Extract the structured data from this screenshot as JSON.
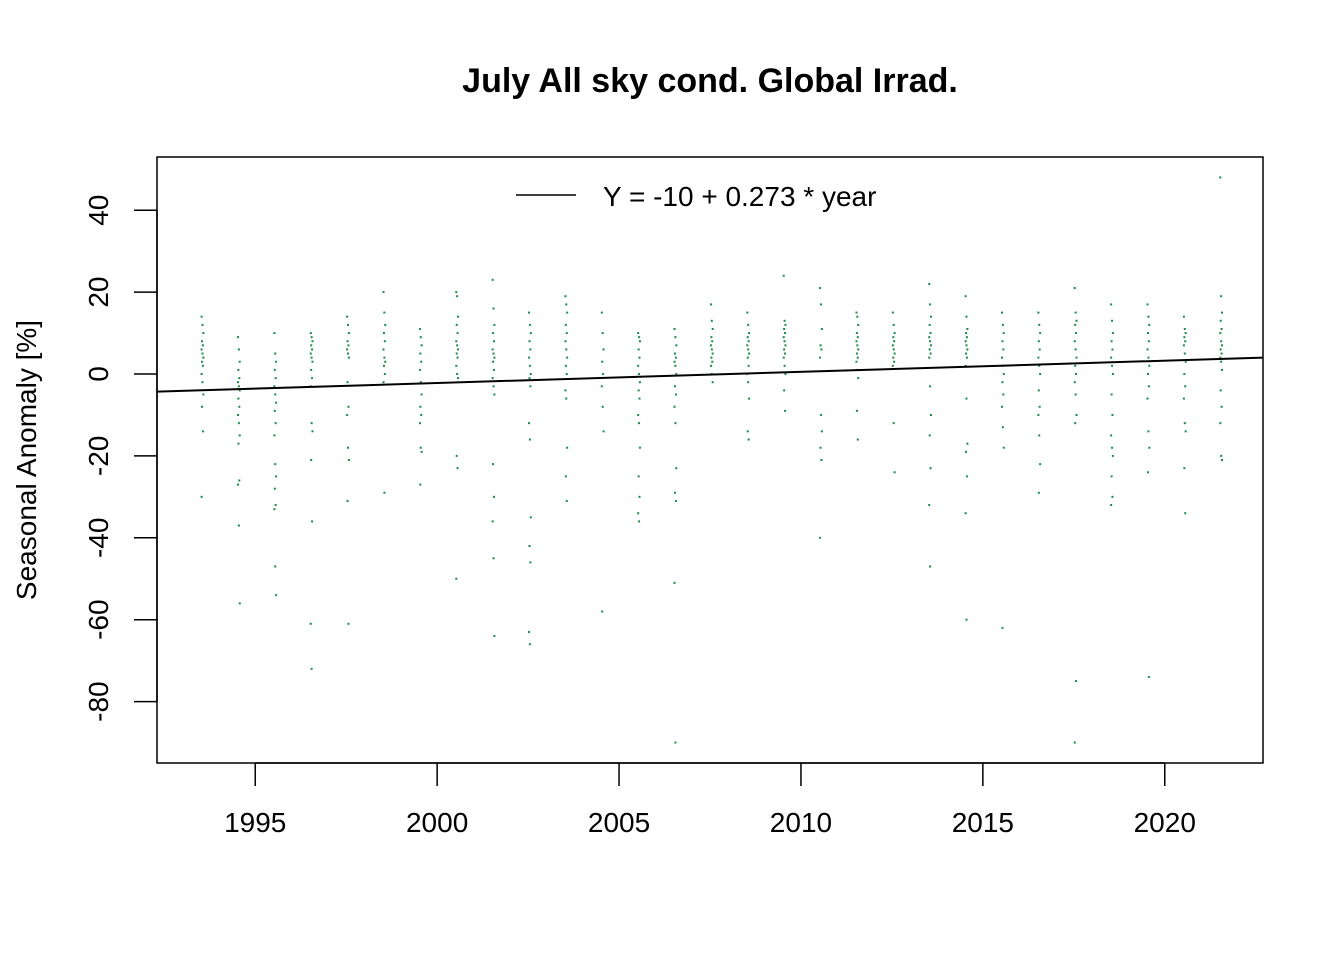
{
  "chart_data": {
    "type": "scatter",
    "title": "July All sky cond. Global Irrad.",
    "xlabel": "",
    "ylabel": "Seasonal Anomaly [%]",
    "xlim": [
      1992.3,
      2022.7
    ],
    "ylim": [
      -95,
      53
    ],
    "x_ticks": [
      1995,
      2000,
      2005,
      2010,
      2015,
      2020
    ],
    "y_ticks": [
      40,
      20,
      0,
      -20,
      -40,
      -60,
      -80
    ],
    "grid": false,
    "legend_placement": "top-center",
    "point_color": "#1a8a4a",
    "line_color": "#000000",
    "trend": {
      "label": "Y = -10 + 0.273 * year",
      "x": [
        1992.3,
        2022.7
      ],
      "y": [
        -4.3,
        4.0
      ]
    },
    "series": [
      {
        "x_by_year": [
          1993.55,
          1994.55,
          1995.55,
          1996.55,
          1997.55,
          1998.55,
          1999.55,
          2000.55,
          2001.55,
          2002.55,
          2003.55,
          2004.55,
          2005.55,
          2006.55,
          2007.55,
          2008.55,
          2009.55,
          2010.55,
          2011.55,
          2012.55,
          2013.55,
          2014.55,
          2015.55,
          2016.55,
          2017.55,
          2018.55,
          2019.55,
          2020.55,
          2021.55
        ],
        "y_by_year": [
          [
            14,
            12,
            10,
            8,
            7,
            6,
            5,
            4,
            3,
            2,
            0,
            -2,
            -5,
            -8,
            -14,
            -30
          ],
          [
            9,
            6,
            3,
            1,
            -1,
            -2,
            -3,
            -4,
            -6,
            -8,
            -10,
            -12,
            -15,
            -17,
            -26,
            -27,
            -37,
            -56
          ],
          [
            10,
            5,
            3,
            1,
            -1,
            -3,
            -5,
            -7,
            -9,
            -12,
            -15,
            -22,
            -25,
            -28,
            -32,
            -33,
            -47,
            -54
          ],
          [
            10,
            9,
            8,
            7,
            6,
            5,
            4,
            3,
            1,
            -1,
            -3,
            -12,
            -14,
            -21,
            -36,
            -61,
            -72
          ],
          [
            14,
            12,
            10,
            8,
            7,
            6,
            5,
            4,
            -2,
            -8,
            -10,
            -18,
            -21,
            -31,
            -61
          ],
          [
            20,
            15,
            12,
            10,
            8,
            6,
            4,
            3,
            2,
            0,
            -2,
            -29
          ],
          [
            11,
            9,
            7,
            5,
            3,
            1,
            -2,
            -5,
            -8,
            -10,
            -12,
            -18,
            -19,
            -27
          ],
          [
            20,
            19,
            14,
            12,
            10,
            8,
            7,
            6,
            5,
            4,
            2,
            0,
            -1,
            -20,
            -23,
            -50
          ],
          [
            23,
            16,
            12,
            10,
            8,
            6,
            5,
            4,
            3,
            1,
            -1,
            -3,
            -5,
            -22,
            -30,
            -36,
            -45,
            -64
          ],
          [
            15,
            12,
            10,
            8,
            6,
            4,
            2,
            0,
            -1,
            -3,
            -12,
            -16,
            -35,
            -42,
            -46,
            -63,
            -66
          ],
          [
            19,
            17,
            15,
            12,
            10,
            8,
            6,
            4,
            2,
            0,
            -4,
            -6,
            -18,
            -25,
            -31
          ],
          [
            15,
            10,
            6,
            3,
            0,
            -3,
            -8,
            -14,
            -58
          ],
          [
            10,
            9,
            8,
            6,
            4,
            2,
            0,
            -2,
            -4,
            -6,
            -10,
            -12,
            -18,
            -25,
            -30,
            -34,
            -36
          ],
          [
            11,
            9,
            7,
            5,
            4,
            3,
            2,
            0,
            -3,
            -5,
            -8,
            -12,
            -23,
            -29,
            -31,
            -51,
            -90
          ],
          [
            17,
            13,
            11,
            9,
            8,
            7,
            6,
            5,
            4,
            3,
            2,
            0,
            -2
          ],
          [
            15,
            12,
            10,
            9,
            8,
            7,
            6,
            5,
            4,
            2,
            0,
            -2,
            -6,
            -14,
            -16
          ],
          [
            24,
            13,
            12,
            11,
            10,
            9,
            8,
            7,
            6,
            5,
            4,
            2,
            0,
            -4,
            -9
          ],
          [
            21,
            17,
            11,
            7,
            6,
            4,
            -10,
            -14,
            -18,
            -21,
            -40
          ],
          [
            15,
            14,
            12,
            10,
            9,
            8,
            7,
            6,
            5,
            4,
            3,
            1,
            -1,
            -9,
            -16
          ],
          [
            15,
            12,
            10,
            9,
            8,
            7,
            6,
            5,
            4,
            3,
            2,
            -12,
            -24
          ],
          [
            22,
            17,
            14,
            12,
            10,
            9,
            8,
            7,
            6,
            5,
            4,
            -3,
            -10,
            -15,
            -23,
            -32,
            -47
          ],
          [
            19,
            14,
            11,
            10,
            9,
            8,
            7,
            6,
            5,
            4,
            2,
            -6,
            -17,
            -19,
            -25,
            -34,
            -60
          ],
          [
            15,
            12,
            10,
            8,
            6,
            4,
            2,
            0,
            -2,
            -5,
            -8,
            -13,
            -18,
            -62
          ],
          [
            15,
            12,
            10,
            8,
            6,
            4,
            2,
            0,
            -4,
            -8,
            -10,
            -15,
            -22,
            -29
          ],
          [
            21,
            15,
            13,
            12,
            10,
            8,
            6,
            4,
            2,
            0,
            -2,
            -5,
            -10,
            -12,
            -75,
            -90
          ],
          [
            17,
            13,
            10,
            8,
            6,
            4,
            2,
            0,
            -5,
            -10,
            -15,
            -18,
            -20,
            -25,
            -30,
            -32
          ],
          [
            17,
            14,
            12,
            10,
            8,
            6,
            4,
            2,
            0,
            -3,
            -6,
            -14,
            -18,
            -24,
            -74
          ],
          [
            14,
            11,
            10,
            9,
            8,
            7,
            5,
            3,
            0,
            -3,
            -6,
            -12,
            -14,
            -23,
            -34
          ],
          [
            48,
            19,
            15,
            13,
            11,
            10,
            8,
            7,
            6,
            5,
            4,
            3,
            1,
            -4,
            -8,
            -12,
            -20,
            -21
          ]
        ]
      }
    ]
  }
}
